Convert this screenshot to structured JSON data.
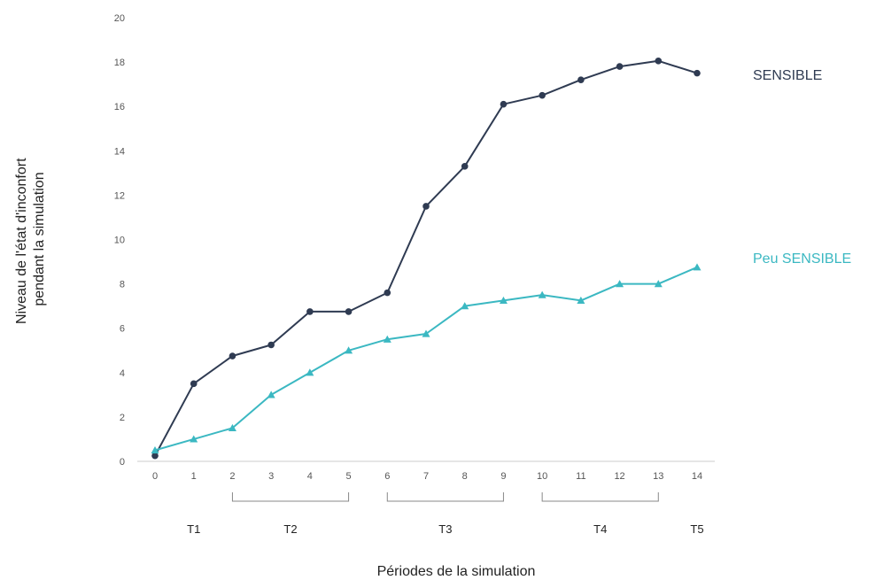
{
  "chart_data": {
    "type": "line",
    "x": [
      0,
      1,
      2,
      3,
      4,
      5,
      6,
      7,
      8,
      9,
      10,
      11,
      12,
      13,
      14
    ],
    "xlabel": "Périodes de la simulation",
    "ylabel": [
      "Niveau de l'état d'inconfort",
      "pendant la simulation"
    ],
    "ylim": [
      0,
      20
    ],
    "yticks": [
      "0",
      "2",
      "4",
      "6",
      "8",
      "10",
      "12",
      "14",
      "16",
      "18",
      "20"
    ],
    "xticks": [
      "0",
      "1",
      "2",
      "3",
      "4",
      "5",
      "6",
      "7",
      "8",
      "9",
      "10",
      "11",
      "12",
      "13",
      "14"
    ],
    "grid": false,
    "series": [
      {
        "name": "SENSIBLE",
        "color": "#2f3b52",
        "marker": "circle",
        "values": [
          0.25,
          3.5,
          4.75,
          5.25,
          6.75,
          6.75,
          7.6,
          11.5,
          13.3,
          16.1,
          16.5,
          17.2,
          17.8,
          18.05,
          17.5
        ]
      },
      {
        "name": "Peu SENSIBLE",
        "color": "#3bb8c2",
        "marker": "triangle",
        "values": [
          0.5,
          1.0,
          1.5,
          3.0,
          4.0,
          5.0,
          5.5,
          5.75,
          7.0,
          7.25,
          7.5,
          7.25,
          8.0,
          8.0,
          8.75
        ]
      }
    ],
    "periods": [
      {
        "label": "T1",
        "center": 1,
        "bracket": null
      },
      {
        "label": "T2",
        "center": 3.5,
        "bracket": [
          2,
          5
        ]
      },
      {
        "label": "T3",
        "center": 7.5,
        "bracket": [
          6,
          9
        ]
      },
      {
        "label": "T4",
        "center": 11.5,
        "bracket": [
          10,
          13
        ]
      },
      {
        "label": "T5",
        "center": 14,
        "bracket": null
      }
    ]
  }
}
